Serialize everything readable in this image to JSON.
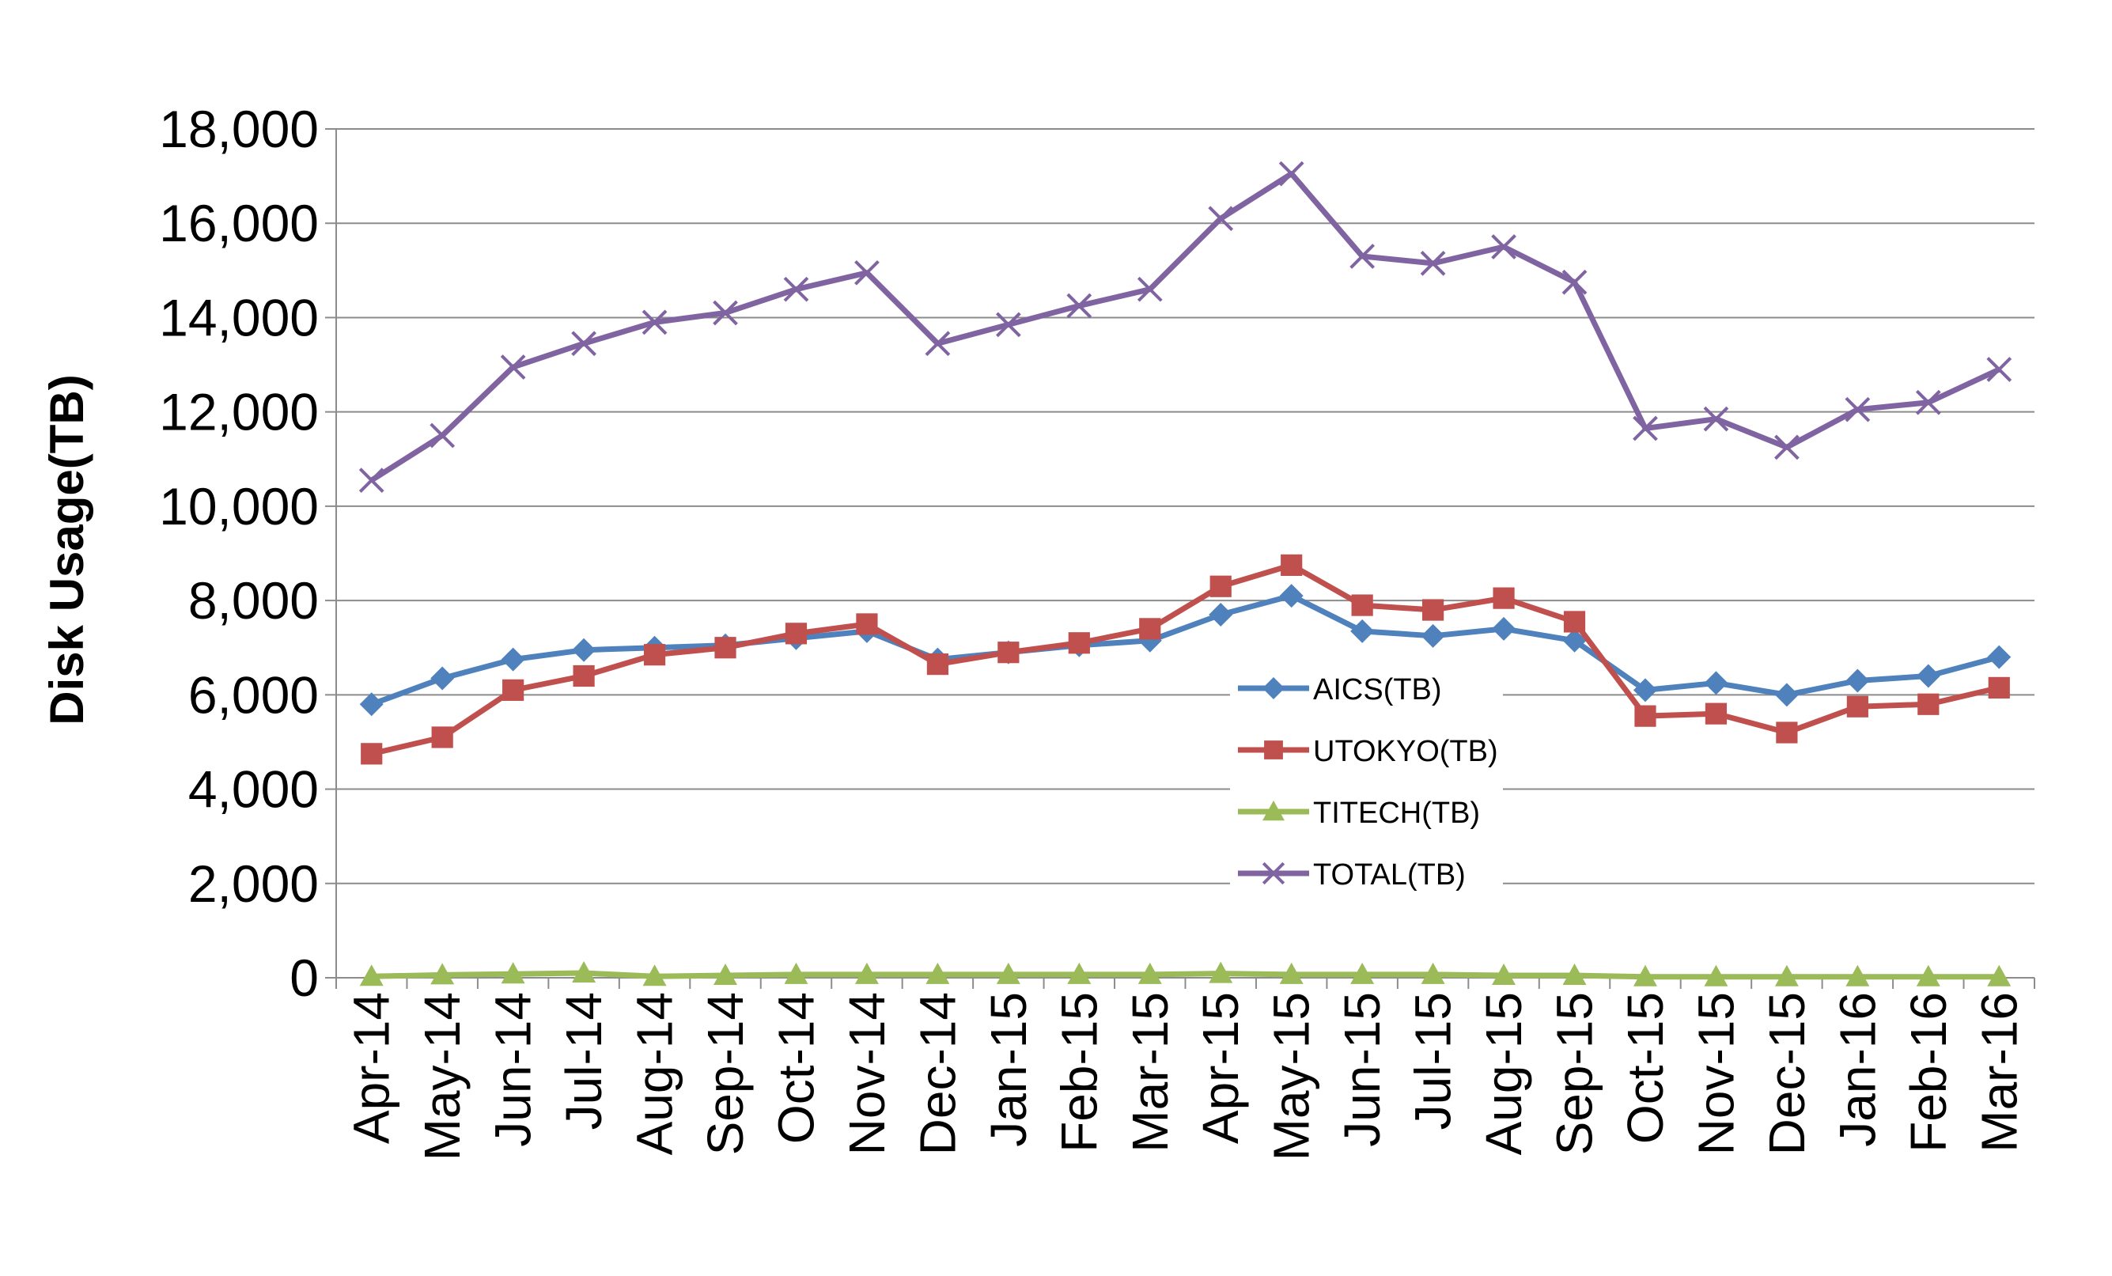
{
  "chart_data": {
    "type": "line",
    "title": "",
    "xlabel": "",
    "ylabel": "Disk Usage(TB)",
    "ylim": [
      0,
      18000
    ],
    "yticks": [
      "0",
      "2,000",
      "4,000",
      "6,000",
      "8,000",
      "10,000",
      "12,000",
      "14,000",
      "16,000",
      "18,000"
    ],
    "grid": true,
    "legend_position": "center-right",
    "categories": [
      "Apr-14",
      "May-14",
      "Jun-14",
      "Jul-14",
      "Aug-14",
      "Sep-14",
      "Oct-14",
      "Nov-14",
      "Dec-14",
      "Jan-15",
      "Feb-15",
      "Mar-15",
      "Apr-15",
      "May-15",
      "Jun-15",
      "Jul-15",
      "Aug-15",
      "Sep-15",
      "Oct-15",
      "Nov-15",
      "Dec-15",
      "Jan-16",
      "Feb-16",
      "Mar-16"
    ],
    "series": [
      {
        "name": "AICS(TB)",
        "color": "#4F81BD",
        "marker": "diamond",
        "values": [
          5800,
          6350,
          6750,
          6950,
          7000,
          7050,
          7200,
          7350,
          6750,
          6900,
          7050,
          7150,
          7700,
          8100,
          7350,
          7250,
          7400,
          7150,
          6100,
          6250,
          6000,
          6300,
          6400,
          6800
        ]
      },
      {
        "name": "UTOKYO(TB)",
        "color": "#C0504D",
        "marker": "square",
        "values": [
          4750,
          5100,
          6100,
          6400,
          6850,
          7000,
          7300,
          7500,
          6650,
          6900,
          7100,
          7400,
          8300,
          8750,
          7900,
          7800,
          8050,
          7550,
          5550,
          5600,
          5200,
          5750,
          5800,
          6150
        ]
      },
      {
        "name": "TITECH(TB)",
        "color": "#9BBB59",
        "marker": "triangle",
        "values": [
          30,
          60,
          80,
          100,
          30,
          50,
          70,
          70,
          70,
          70,
          70,
          70,
          90,
          70,
          70,
          70,
          50,
          50,
          20,
          20,
          20,
          20,
          20,
          20
        ]
      },
      {
        "name": "TOTAL(TB)",
        "color": "#8064A2",
        "marker": "x",
        "values": [
          10550,
          11500,
          12950,
          13450,
          13900,
          14100,
          14600,
          14950,
          13450,
          13850,
          14250,
          14600,
          16100,
          17050,
          15300,
          15150,
          15500,
          14750,
          11650,
          11850,
          11250,
          12050,
          12200,
          12900
        ]
      }
    ]
  }
}
